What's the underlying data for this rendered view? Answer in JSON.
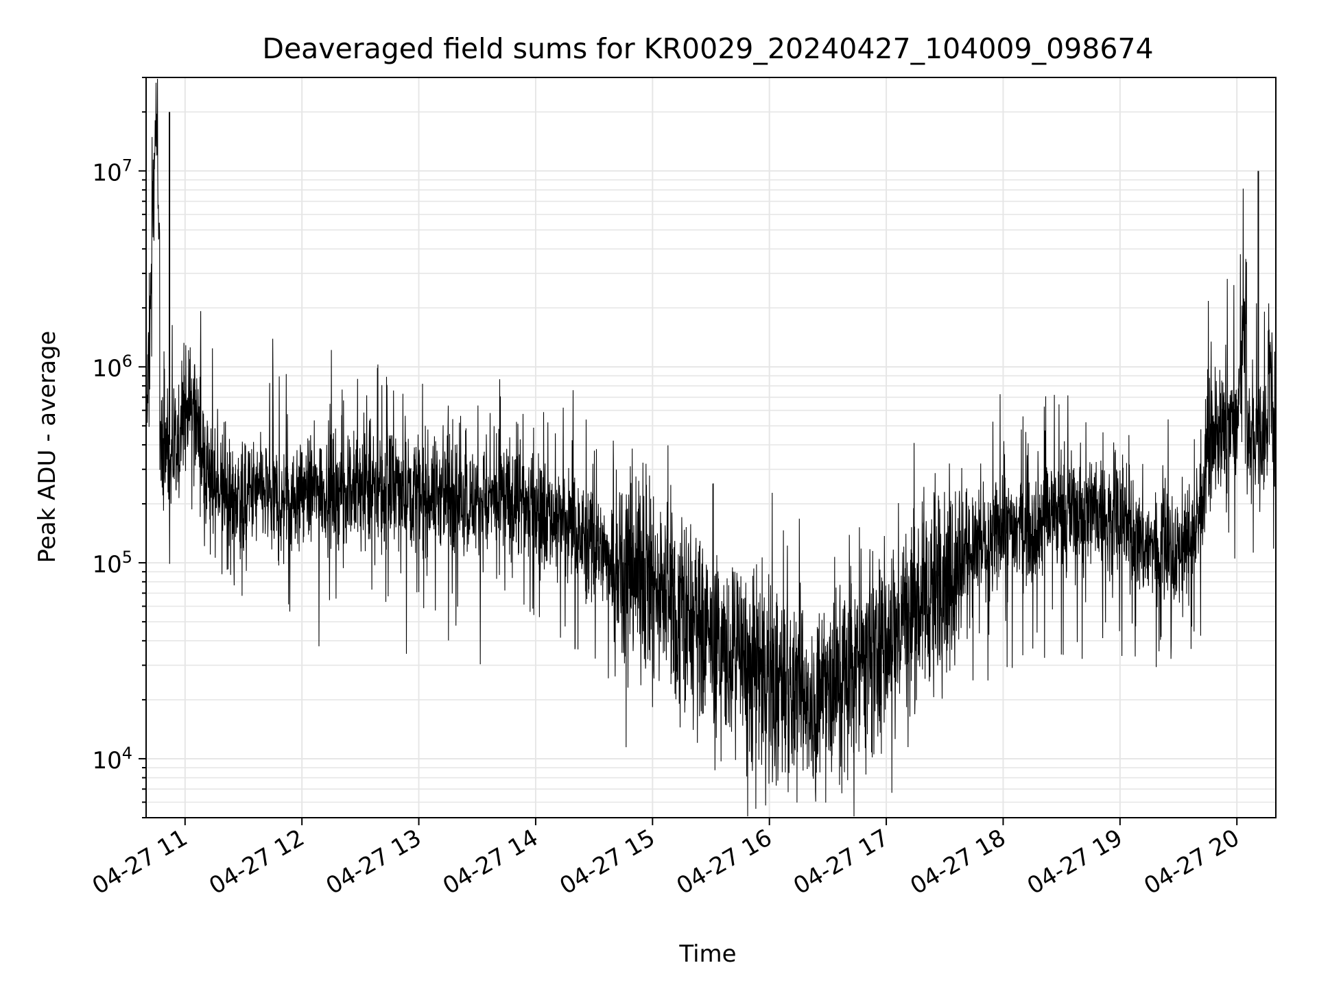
{
  "chart_data": {
    "type": "line",
    "title": "Deaveraged field sums for KR0029_20240427_104009_098674",
    "xlabel": "Time",
    "ylabel": "Peak ADU - average",
    "yscale": "log",
    "xlim": [
      "04-27 10:40",
      "04-27 20:20"
    ],
    "ylim": [
      5000,
      30000000
    ],
    "grid": "on (major and minor)",
    "line_color": "#000000",
    "grid_color": "#e6e6e6",
    "x_tick_labels": [
      "04-27 11",
      "04-27 12",
      "04-27 13",
      "04-27 14",
      "04-27 15",
      "04-27 16",
      "04-27 17",
      "04-27 18",
      "04-27 19",
      "04-27 20"
    ],
    "y_tick_labels": [
      {
        "value": 10000,
        "base": "10",
        "exp": "4"
      },
      {
        "value": 100000,
        "base": "10",
        "exp": "5"
      },
      {
        "value": 1000000,
        "base": "10",
        "exp": "6"
      },
      {
        "value": 10000000,
        "base": "10",
        "exp": "7"
      }
    ],
    "series": [
      {
        "x": [
          "04-27 10:40",
          "04-27 10:45",
          "04-27 10:50",
          "04-27 10:55",
          "04-27 11:00",
          "04-27 11:05",
          "04-27 11:10",
          "04-27 11:20",
          "04-27 11:30",
          "04-27 11:40",
          "04-27 11:50",
          "04-27 12:00",
          "04-27 12:15",
          "04-27 12:30",
          "04-27 12:45",
          "04-27 13:00",
          "04-27 13:15",
          "04-27 13:30",
          "04-27 13:45",
          "04-27 14:00",
          "04-27 14:15",
          "04-27 14:30",
          "04-27 14:45",
          "04-27 15:00",
          "04-27 15:15",
          "04-27 15:30",
          "04-27 15:45",
          "04-27 16:00",
          "04-27 16:15",
          "04-27 16:30",
          "04-27 16:45",
          "04-27 17:00",
          "04-27 17:15",
          "04-27 17:30",
          "04-27 17:45",
          "04-27 18:00",
          "04-27 18:15",
          "04-27 18:30",
          "04-27 18:45",
          "04-27 19:00",
          "04-27 19:15",
          "04-27 19:30",
          "04-27 19:40",
          "04-27 19:45",
          "04-27 19:50",
          "04-27 20:00",
          "04-27 20:10",
          "04-27 20:20"
        ],
        "y": [
          400000,
          20000000,
          250000,
          300000,
          600000,
          650000,
          280000,
          230000,
          210000,
          230000,
          200000,
          230000,
          240000,
          230000,
          240000,
          230000,
          220000,
          200000,
          210000,
          190000,
          160000,
          120000,
          100000,
          80000,
          60000,
          40000,
          30000,
          25000,
          20000,
          22000,
          30000,
          40000,
          60000,
          90000,
          120000,
          140000,
          160000,
          180000,
          190000,
          160000,
          120000,
          110000,
          150000,
          400000,
          450000,
          500000,
          10000000,
          400000
        ],
        "values_note_hidden": null
      }
    ]
  }
}
